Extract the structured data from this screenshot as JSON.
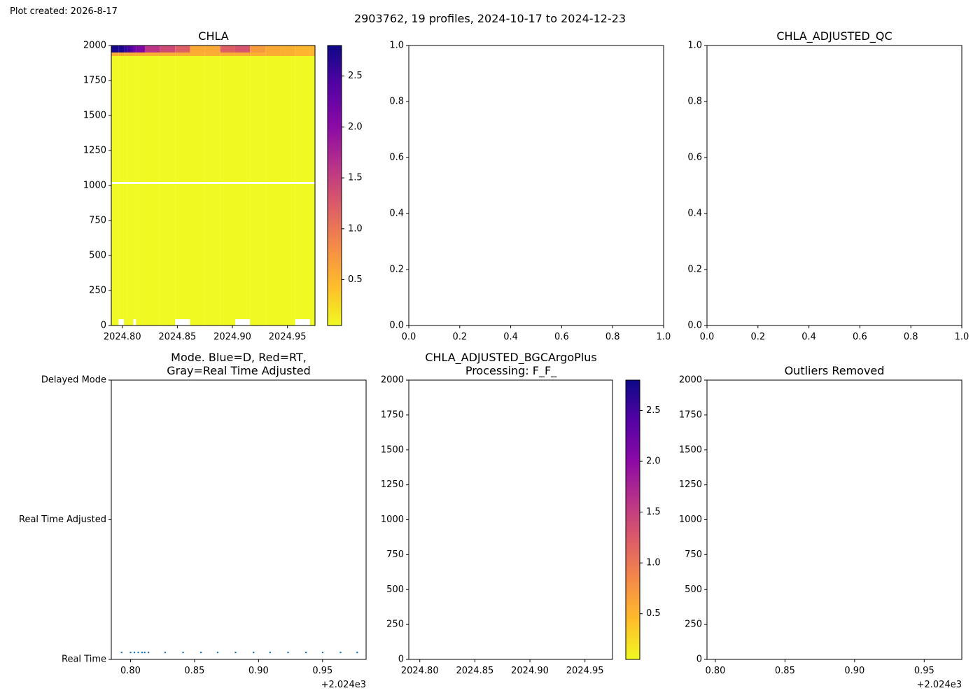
{
  "header": {
    "created": "Plot created: 2026-8-17",
    "suptitle": "2903762, 19 profiles, 2024-10-17 to 2024-12-23"
  },
  "colormap": {
    "name": "plasma",
    "stops": [
      "#0d0887",
      "#5302a3",
      "#8b0aa5",
      "#b83289",
      "#db5c68",
      "#f48849",
      "#febd2a",
      "#f0f921"
    ]
  },
  "chart_data": [
    {
      "id": "chla",
      "type": "heatmap",
      "title": "CHLA",
      "xlabel": "",
      "ylabel": "",
      "xlim": [
        2024.79,
        2024.975
      ],
      "ylim": [
        2000,
        0
      ],
      "xticks": [
        "2024.80",
        "2024.85",
        "2024.90",
        "2024.95"
      ],
      "xtick_values": [
        2024.8,
        2024.85,
        2024.9,
        2024.95
      ],
      "yticks": [
        "0",
        "250",
        "500",
        "750",
        "1000",
        "1250",
        "1500",
        "1750",
        "2000"
      ],
      "ytick_values": [
        0,
        250,
        500,
        750,
        1000,
        1250,
        1500,
        1750,
        2000
      ],
      "profile_times": [
        2024.793,
        2024.8,
        2024.803,
        2024.806,
        2024.809,
        2024.811,
        2024.814,
        2024.827,
        2024.841,
        2024.855,
        2024.868,
        2024.882,
        2024.896,
        2024.909,
        2024.923,
        2024.937,
        2024.95,
        2024.964,
        2024.977
      ],
      "surface_chla_0_to_50dbar": [
        2.75,
        2.7,
        2.6,
        2.5,
        2.4,
        2.2,
        2.1,
        1.6,
        1.4,
        1.2,
        0.6,
        0.6,
        1.2,
        1.3,
        0.7,
        0.6,
        0.55,
        0.5,
        0.5
      ],
      "deep_chla_below_50dbar": 0.05,
      "value_gap_depth_dbar": [
        975,
        990
      ],
      "colorbar": {
        "range": [
          0.05,
          2.8
        ],
        "ticks": [
          "0.5",
          "1.0",
          "1.5",
          "2.0",
          "2.5"
        ],
        "tick_values": [
          0.5,
          1.0,
          1.5,
          2.0,
          2.5
        ]
      }
    },
    {
      "id": "empty_top_middle",
      "type": "scatter",
      "title": "",
      "xlim": [
        0,
        1
      ],
      "ylim": [
        0,
        1
      ],
      "xticks": [
        "0.0",
        "0.2",
        "0.4",
        "0.6",
        "0.8",
        "1.0"
      ],
      "yticks": [
        "0.0",
        "0.2",
        "0.4",
        "0.6",
        "0.8",
        "1.0"
      ],
      "series": []
    },
    {
      "id": "chla_adjusted_qc",
      "type": "scatter",
      "title": "CHLA_ADJUSTED_QC",
      "xlim": [
        0,
        1
      ],
      "ylim": [
        0,
        1
      ],
      "xticks": [
        "0.0",
        "0.2",
        "0.4",
        "0.6",
        "0.8",
        "1.0"
      ],
      "yticks": [
        "0.0",
        "0.2",
        "0.4",
        "0.6",
        "0.8",
        "1.0"
      ],
      "series": []
    },
    {
      "id": "mode",
      "type": "scatter",
      "title": "Mode. Blue=D, Red=RT,\nGray=Real Time Adjusted",
      "xlim": [
        2024.785,
        2024.984
      ],
      "xticks": [
        "0.80",
        "0.85",
        "0.90",
        "0.95"
      ],
      "xtick_values": [
        2024.8,
        2024.85,
        2024.9,
        2024.95
      ],
      "x_offset_label": "+2.024e3",
      "yticks": [
        "Delayed Mode",
        "Real Time Adjusted",
        "Real Time"
      ],
      "ytick_values": [
        2,
        1,
        0
      ],
      "ylim": [
        0,
        2
      ],
      "x": [
        2024.793,
        2024.8,
        2024.803,
        2024.806,
        2024.809,
        2024.811,
        2024.814,
        2024.827,
        2024.841,
        2024.855,
        2024.868,
        2024.882,
        2024.896,
        2024.909,
        2024.923,
        2024.937,
        2024.95,
        2024.964,
        2024.977
      ],
      "y": [
        0,
        0,
        0,
        0,
        0,
        0,
        0,
        0,
        0,
        0,
        0,
        0,
        0,
        0,
        0,
        0,
        0,
        0,
        0
      ],
      "color": "#1f77b4"
    },
    {
      "id": "chla_adjusted_bgcargoplus",
      "type": "heatmap",
      "title": "CHLA_ADJUSTED_BGCArgoPlus\nProcessing: F_F_",
      "xlim": [
        2024.79,
        2024.975
      ],
      "ylim": [
        2000,
        0
      ],
      "xticks": [
        "2024.80",
        "2024.85",
        "2024.90",
        "2024.95"
      ],
      "xtick_values": [
        2024.8,
        2024.85,
        2024.9,
        2024.95
      ],
      "yticks": [
        "0",
        "250",
        "500",
        "750",
        "1000",
        "1250",
        "1500",
        "1750",
        "2000"
      ],
      "ytick_values": [
        0,
        250,
        500,
        750,
        1000,
        1250,
        1500,
        1750,
        2000
      ],
      "colorbar": {
        "range": [
          0.05,
          2.8
        ],
        "ticks": [
          "0.5",
          "1.0",
          "1.5",
          "2.0",
          "2.5"
        ],
        "tick_values": [
          0.5,
          1.0,
          1.5,
          2.0,
          2.5
        ]
      },
      "series": []
    },
    {
      "id": "outliers_removed",
      "type": "scatter",
      "title": "Outliers Removed",
      "xlim": [
        2024.794,
        2024.977
      ],
      "ylim": [
        2000,
        0
      ],
      "xticks": [
        "0.80",
        "0.85",
        "0.90",
        "0.95"
      ],
      "xtick_values": [
        2024.8,
        2024.85,
        2024.9,
        2024.95
      ],
      "x_offset_label": "+2.024e3",
      "yticks": [
        "0",
        "250",
        "500",
        "750",
        "1000",
        "1250",
        "1500",
        "1750",
        "2000"
      ],
      "ytick_values": [
        0,
        250,
        500,
        750,
        1000,
        1250,
        1500,
        1750,
        2000
      ],
      "series": []
    }
  ]
}
